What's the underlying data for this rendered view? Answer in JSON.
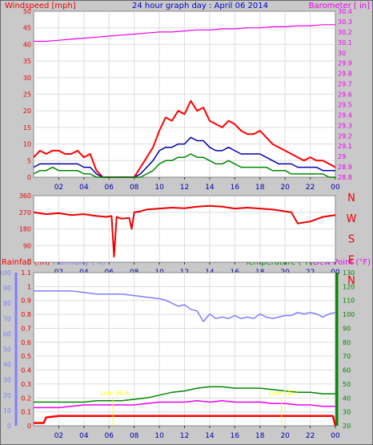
{
  "header": {
    "title": "24 hour graph day : April 06 2014",
    "left_label": "Windspeed [mph]",
    "right_label": "Barometer [ in]"
  },
  "colors": {
    "background": "#c9c9c9",
    "plot_bg": "#ffffff",
    "grid": "#dddddd",
    "title": "#0000cc",
    "wind_label": "#ee0000",
    "wind_gust": "#ff0000",
    "wind_avg": "#0000aa",
    "wind_speed": "#008800",
    "barometer": "#ee00ee",
    "direction": "#ee0000",
    "rain": "#ee0000",
    "humidity": "#7f7fff",
    "temperature": "#008800",
    "dewpoint": "#ee00ee",
    "annotation": "#ffff00"
  },
  "chart_data": [
    {
      "type": "line",
      "name": "wind_and_barometer",
      "title": "24 hour graph day : April 06 2014",
      "x_ticks": [
        "02",
        "04",
        "06",
        "08",
        "10",
        "12",
        "14",
        "16",
        "18",
        "20",
        "22",
        "00"
      ],
      "xlim": [
        0,
        24
      ],
      "grid": true,
      "y_left": {
        "label": "Windspeed [mph]",
        "lim": [
          0,
          50
        ],
        "ticks": [
          "0",
          "5",
          "10",
          "15",
          "20",
          "25",
          "30",
          "35",
          "40",
          "45",
          "50"
        ]
      },
      "y_right": {
        "label": "Barometer [ in]",
        "lim": [
          28.8,
          30.4
        ],
        "ticks": [
          "28.8",
          "28.9",
          "29",
          "29.1",
          "29.2",
          "29.3",
          "29.4",
          "29.5",
          "29.6",
          "29.7",
          "29.8",
          "29.9",
          "30",
          "30.1",
          "30.2",
          "30.3",
          "30.4"
        ]
      },
      "series": [
        {
          "axis": "left",
          "color": "#ff0000",
          "x": [
            0.0,
            0.5,
            1.0,
            1.5,
            2.0,
            2.5,
            3.0,
            3.5,
            4.0,
            4.5,
            5.0,
            5.5,
            6.0,
            6.5,
            7.0,
            7.5,
            8.0,
            8.5,
            9.0,
            9.5,
            10.0,
            10.5,
            11.0,
            11.5,
            12.0,
            12.5,
            13.0,
            13.5,
            14.0,
            14.5,
            15.0,
            15.5,
            16.0,
            16.5,
            17.0,
            17.5,
            18.0,
            18.5,
            19.0,
            19.5,
            20.0,
            20.5,
            21.0,
            21.5,
            22.0,
            22.5,
            23.0,
            23.5,
            24.0
          ],
          "values": [
            6,
            8,
            7,
            8,
            8,
            7,
            7,
            8,
            6,
            7,
            2,
            0,
            0,
            0,
            0,
            0,
            0,
            3,
            6,
            9,
            14,
            18,
            17,
            20,
            19,
            23,
            20,
            21,
            17,
            16,
            15,
            17,
            16,
            14,
            13,
            13,
            14,
            12,
            10,
            9,
            8,
            7,
            6,
            5,
            6,
            5,
            5,
            4,
            3
          ]
        },
        {
          "axis": "left",
          "color": "#0000aa",
          "x": [
            0.0,
            0.5,
            1.0,
            1.5,
            2.0,
            2.5,
            3.0,
            3.5,
            4.0,
            4.5,
            5.0,
            5.5,
            6.0,
            6.5,
            7.0,
            7.5,
            8.0,
            8.5,
            9.0,
            9.5,
            10.0,
            10.5,
            11.0,
            11.5,
            12.0,
            12.5,
            13.0,
            13.5,
            14.0,
            14.5,
            15.0,
            15.5,
            16.0,
            16.5,
            17.0,
            17.5,
            18.0,
            18.5,
            19.0,
            19.5,
            20.0,
            20.5,
            21.0,
            21.5,
            22.0,
            22.5,
            23.0,
            23.5,
            24.0
          ],
          "values": [
            3,
            4,
            4,
            4,
            4,
            4,
            4,
            4,
            3,
            3,
            1,
            0,
            0,
            0,
            0,
            0,
            0,
            1,
            3,
            5,
            8,
            9,
            9,
            10,
            10,
            12,
            11,
            11,
            9,
            8,
            8,
            9,
            8,
            7,
            7,
            7,
            7,
            6,
            5,
            4,
            4,
            4,
            3,
            3,
            3,
            3,
            2,
            2,
            2
          ]
        },
        {
          "axis": "left",
          "color": "#008800",
          "x": [
            0.0,
            0.5,
            1.0,
            1.5,
            2.0,
            2.5,
            3.0,
            3.5,
            4.0,
            4.5,
            5.0,
            5.5,
            6.0,
            6.5,
            7.0,
            7.5,
            8.0,
            8.5,
            9.0,
            9.5,
            10.0,
            10.5,
            11.0,
            11.5,
            12.0,
            12.5,
            13.0,
            13.5,
            14.0,
            14.5,
            15.0,
            15.5,
            16.0,
            16.5,
            17.0,
            17.5,
            18.0,
            18.5,
            19.0,
            19.5,
            20.0,
            20.5,
            21.0,
            21.5,
            22.0,
            22.5,
            23.0,
            23.5,
            24.0
          ],
          "values": [
            1,
            2,
            2,
            3,
            2,
            2,
            2,
            2,
            1,
            1,
            0,
            0,
            0,
            0,
            0,
            0,
            0,
            0,
            1,
            2,
            4,
            5,
            5,
            6,
            6,
            7,
            6,
            6,
            5,
            4,
            4,
            5,
            4,
            3,
            3,
            3,
            3,
            3,
            2,
            2,
            2,
            1,
            1,
            1,
            1,
            1,
            1,
            0,
            0
          ]
        },
        {
          "axis": "right",
          "color": "#ee00ee",
          "x": [
            0.0,
            1.0,
            2.0,
            3.0,
            4.0,
            5.0,
            6.0,
            7.0,
            8.0,
            9.0,
            10.0,
            11.0,
            12.0,
            13.0,
            14.0,
            15.0,
            16.0,
            17.0,
            18.0,
            19.0,
            20.0,
            21.0,
            22.0,
            23.0,
            24.0
          ],
          "values": [
            30.11,
            30.11,
            30.12,
            30.13,
            30.14,
            30.15,
            30.16,
            30.17,
            30.18,
            30.19,
            30.2,
            30.2,
            30.21,
            30.22,
            30.22,
            30.23,
            30.23,
            30.24,
            30.24,
            30.25,
            30.25,
            30.26,
            30.26,
            30.27,
            30.27
          ]
        }
      ]
    },
    {
      "type": "line",
      "name": "wind_direction",
      "x_ticks": [
        "02",
        "04",
        "06",
        "08",
        "10",
        "12",
        "14",
        "16",
        "18",
        "20",
        "22",
        "00"
      ],
      "xlim": [
        0,
        24
      ],
      "grid": true,
      "y_left": {
        "lim": [
          0,
          360
        ],
        "ticks": [
          "0",
          "90",
          "180",
          "270",
          "360"
        ]
      },
      "y_right": {
        "ticks": [
          "N",
          "W",
          "S",
          "E",
          "N"
        ]
      },
      "series": [
        {
          "axis": "left",
          "color": "#ee0000",
          "x": [
            0.0,
            1.0,
            2.0,
            3.0,
            4.0,
            5.0,
            5.8,
            6.2,
            6.4,
            6.6,
            7.0,
            7.6,
            7.8,
            8.0,
            8.5,
            9.0,
            10.0,
            11.0,
            12.0,
            13.0,
            14.0,
            15.0,
            16.0,
            17.0,
            18.0,
            19.0,
            20.0,
            20.5,
            21.0,
            22.0,
            23.0,
            24.0
          ],
          "values": [
            270,
            260,
            265,
            255,
            260,
            250,
            245,
            250,
            30,
            245,
            235,
            240,
            180,
            270,
            275,
            285,
            290,
            295,
            292,
            300,
            305,
            300,
            290,
            295,
            290,
            285,
            275,
            270,
            210,
            220,
            245,
            255
          ]
        }
      ]
    },
    {
      "type": "line",
      "name": "rain_humidity_temperature",
      "x_ticks": [
        "02",
        "04",
        "06",
        "08",
        "10",
        "12",
        "14",
        "16",
        "18",
        "20",
        "22",
        "00"
      ],
      "xlim": [
        0,
        24
      ],
      "grid": true,
      "labels": {
        "rainfall": "Rainfall (.in)",
        "humidity": "Humidity (%)",
        "temperature": "Temperature (°F)",
        "dewpoint": "Dew Point (°F)"
      },
      "y_humidity": {
        "lim": [
          0,
          100
        ],
        "ticks": [
          "0",
          "10",
          "20",
          "30",
          "40",
          "50",
          "60",
          "70",
          "80",
          "90",
          "100"
        ]
      },
      "y_rain": {
        "lim": [
          0,
          1.1
        ],
        "ticks": [
          "0",
          "0.1",
          "0.2",
          "0.3",
          "0.4",
          "0.5",
          "0.6",
          "0.7",
          "0.8",
          "0.9",
          "1",
          "1.1"
        ]
      },
      "y_temp": {
        "lim": [
          20,
          130
        ],
        "ticks": [
          "20",
          "30",
          "40",
          "50",
          "60",
          "70",
          "80",
          "90",
          "100",
          "110",
          "120",
          "130"
        ]
      },
      "annotations": [
        {
          "text": "Low 36.4",
          "x": 5.3,
          "y_temp": 42
        },
        {
          "text": "Low 19.7",
          "x": 18.7,
          "y_temp": 42
        }
      ],
      "series": [
        {
          "name": "Humidity (%)",
          "axis": "humidity",
          "color": "#7f7fff",
          "x": [
            0.0,
            1.0,
            2.0,
            3.0,
            4.0,
            5.0,
            6.0,
            7.0,
            8.0,
            9.0,
            10.0,
            10.5,
            11.0,
            11.5,
            12.0,
            12.5,
            13.0,
            13.5,
            14.0,
            14.5,
            15.0,
            15.5,
            16.0,
            16.5,
            17.0,
            17.5,
            18.0,
            18.5,
            19.0,
            19.5,
            20.0,
            20.5,
            21.0,
            21.5,
            22.0,
            22.5,
            23.0,
            23.5,
            24.0
          ],
          "values": [
            88,
            88,
            88,
            88,
            87,
            86,
            86,
            86,
            85,
            84,
            83,
            82,
            80,
            78,
            79,
            76,
            75,
            68,
            73,
            70,
            71,
            70,
            72,
            70,
            71,
            70,
            73,
            71,
            70,
            71,
            72,
            72,
            74,
            73,
            74,
            73,
            71,
            73,
            74
          ]
        },
        {
          "name": "Rainfall (.in)",
          "axis": "rain",
          "color": "#ff0000",
          "x": [
            0.0,
            0.8,
            1.0,
            2.0,
            5.0,
            8.0,
            9.0,
            12.0,
            15.0,
            18.0,
            21.0,
            23.8,
            24.0
          ],
          "values": [
            0.02,
            0.02,
            0.06,
            0.07,
            0.07,
            0.07,
            0.07,
            0.07,
            0.07,
            0.07,
            0.07,
            0.07,
            0.0
          ]
        },
        {
          "name": "Temperature (°F)",
          "axis": "temp",
          "color": "#008800",
          "x": [
            0.0,
            1.0,
            2.0,
            3.0,
            4.0,
            5.0,
            6.0,
            7.0,
            8.0,
            9.0,
            10.0,
            11.0,
            12.0,
            13.0,
            14.0,
            15.0,
            16.0,
            17.0,
            18.0,
            19.0,
            20.0,
            21.0,
            22.0,
            23.0,
            24.0
          ],
          "values": [
            37,
            37,
            37,
            37,
            37,
            38,
            38,
            38,
            39,
            40,
            42,
            44,
            45,
            47,
            48,
            48,
            47,
            47,
            47,
            46,
            45,
            44,
            44,
            43,
            43
          ]
        },
        {
          "name": "Dew Point (°F)",
          "axis": "temp",
          "color": "#ee00ee",
          "x": [
            0.0,
            1.0,
            2.0,
            3.0,
            4.0,
            5.0,
            6.0,
            7.0,
            8.0,
            9.0,
            10.0,
            11.0,
            12.0,
            13.0,
            14.0,
            15.0,
            16.0,
            17.0,
            18.0,
            19.0,
            20.0,
            21.0,
            22.0,
            23.0,
            24.0
          ],
          "values": [
            33,
            33,
            33,
            34,
            35,
            35,
            35,
            35,
            35,
            36,
            37,
            37,
            37,
            38,
            37,
            38,
            37,
            37,
            37,
            36,
            36,
            35,
            35,
            34,
            34
          ]
        }
      ]
    }
  ]
}
